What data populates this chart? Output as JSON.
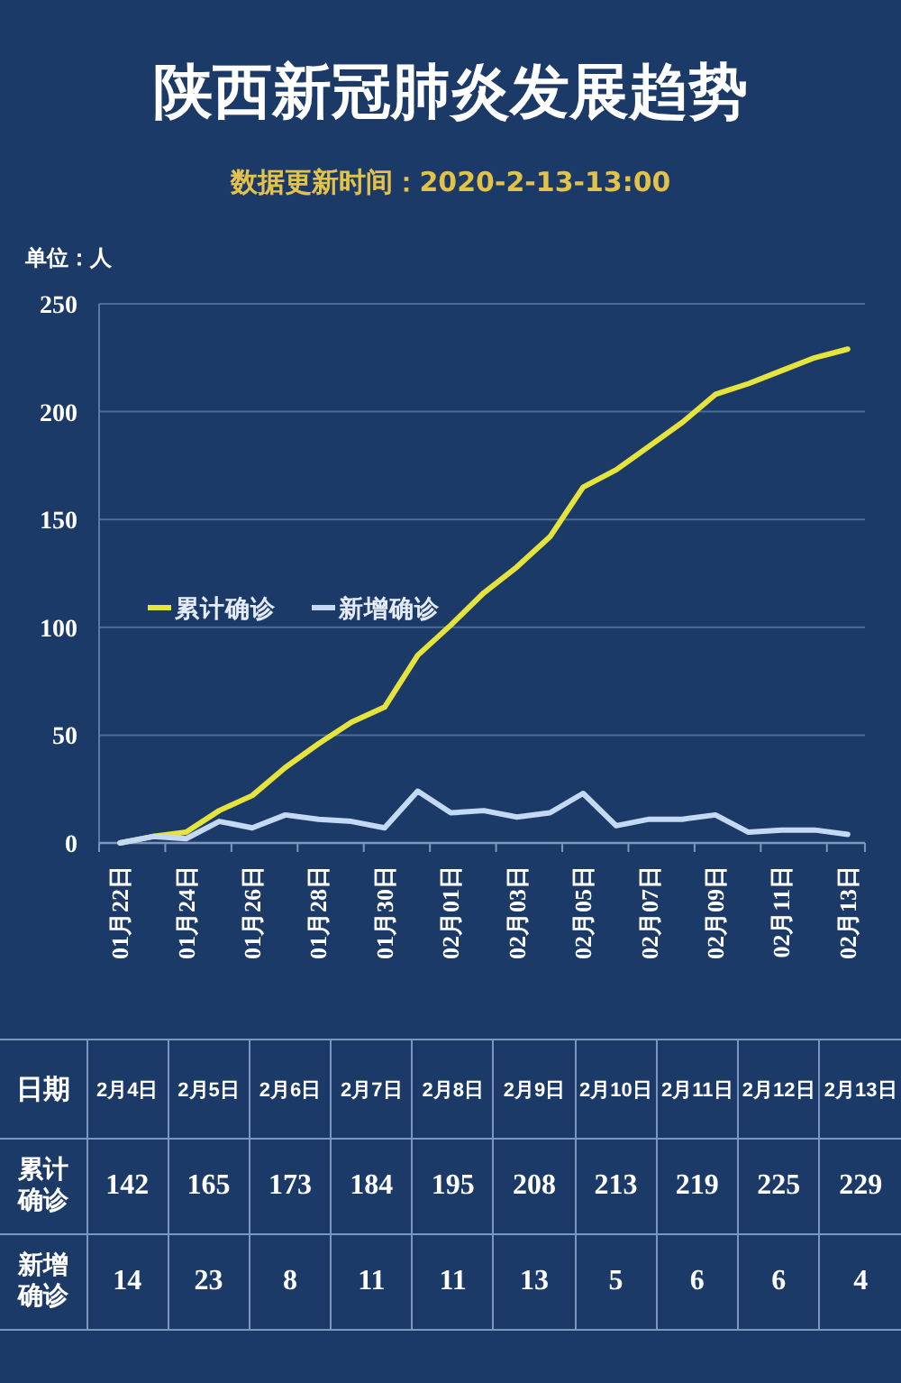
{
  "chart_data": {
    "type": "line",
    "title": "陕西新冠肺炎发展趋势",
    "subtitle": "数据更新时间：2020-2-13-13:00",
    "ylabel": "单位：人",
    "categories": [
      "01月22日",
      null,
      "01月24日",
      null,
      "01月26日",
      null,
      "01月28日",
      null,
      "01月30日",
      null,
      "02月01日",
      null,
      "02月03日",
      null,
      "02月05日",
      null,
      "02月07日",
      null,
      "02月09日",
      null,
      "02月11日",
      null,
      "02月13日"
    ],
    "series": [
      {
        "name": "累计确诊",
        "color": "#e6e43c",
        "values": [
          0,
          3,
          5,
          15,
          22,
          35,
          46,
          56,
          63,
          87,
          101,
          116,
          128,
          142,
          165,
          173,
          184,
          195,
          208,
          213,
          219,
          225,
          229
        ]
      },
      {
        "name": "新增确诊",
        "color": "#c4daf4",
        "values": [
          0,
          3,
          2,
          10,
          7,
          13,
          11,
          10,
          7,
          24,
          14,
          15,
          12,
          14,
          23,
          8,
          11,
          11,
          13,
          5,
          6,
          6,
          4
        ]
      }
    ],
    "ylim": [
      0,
      250
    ],
    "yticks": [
      0,
      50,
      100,
      150,
      200,
      250
    ],
    "grid": "y",
    "legend": "left",
    "annotations": [
      "日期",
      "2月4日",
      "2月5日",
      "2月6日",
      "2月7日",
      "2月8日",
      "2月9日",
      "2月10日",
      "2月11日",
      "2月12日",
      "2月13日",
      "142",
      "165",
      "173",
      "184",
      "195",
      "208",
      "213",
      "219",
      "225",
      "229",
      "14",
      "23",
      "8",
      "11",
      "11",
      "13",
      "5",
      "6",
      "6",
      "4"
    ]
  }
}
